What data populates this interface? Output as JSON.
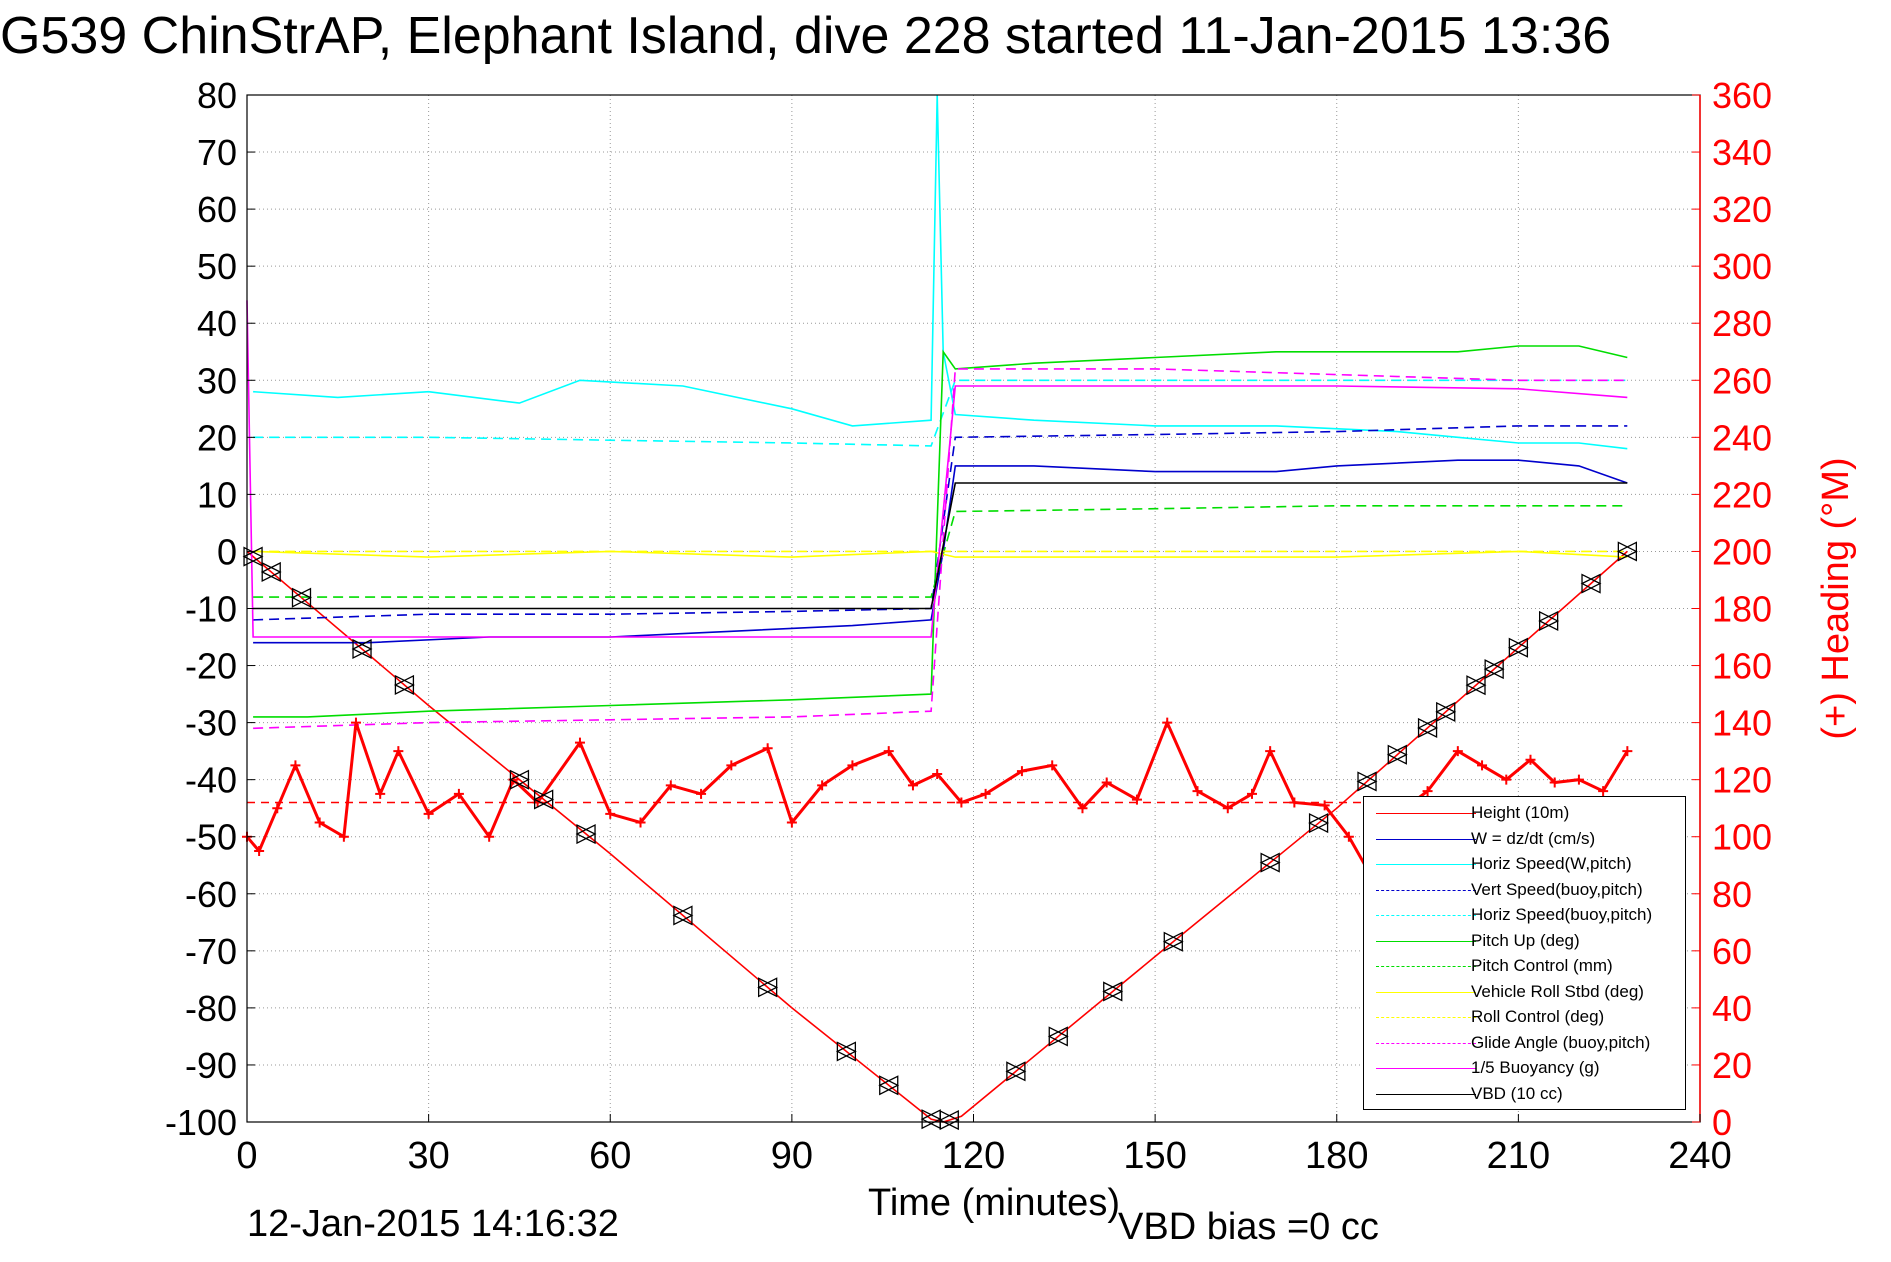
{
  "title": "G539 ChinStrAP, Elephant Island, dive 228 started 11-Jan-2015 13:36",
  "footer_left": "12-Jan-2015 14:16:32",
  "footer_right": "VBD bias =0 cc",
  "colors": {
    "height": "#ff0000",
    "w": "#0000cc",
    "horiz": "#00ffff",
    "pitch": "#00dd00",
    "roll": "#ffff00",
    "glide": "#ff00ff",
    "vbd": "#000000",
    "heading_axis": "#ff0000"
  },
  "chart_data": {
    "type": "line",
    "title": "G539 ChinStrAP, Elephant Island, dive 228 started 11-Jan-2015 13:36",
    "xlabel": "Time (minutes)",
    "ylabel_right": "(+) Heading (°M)",
    "xlim": [
      0,
      240
    ],
    "ylim_left": [
      -100,
      80
    ],
    "ylim_right": [
      0,
      360
    ],
    "x_ticks": [
      "0",
      "30",
      "60",
      "90",
      "120",
      "150",
      "180",
      "210",
      "240"
    ],
    "y_ticks_left": [
      "80",
      "70",
      "60",
      "50",
      "40",
      "30",
      "20",
      "10",
      "0",
      "-10",
      "-20",
      "-30",
      "-40",
      "-50",
      "-60",
      "-70",
      "-80",
      "-90",
      "-100"
    ],
    "y_ticks_right": [
      "360",
      "340",
      "320",
      "300",
      "280",
      "260",
      "240",
      "220",
      "200",
      "180",
      "160",
      "140",
      "120",
      "100",
      "80",
      "60",
      "40",
      "20",
      "0"
    ],
    "grid": true,
    "legend_position": "bottom-right",
    "series": [
      {
        "name": "Height (10m)",
        "style": "solid",
        "color_key": "height",
        "x": [
          0,
          10,
          30,
          60,
          90,
          113,
          115,
          118,
          150,
          180,
          228
        ],
        "y": [
          0,
          -9,
          -27,
          -53,
          -80,
          -99.5,
          -100,
          -99,
          -71,
          -45,
          0
        ]
      },
      {
        "name": "W = dz/dt (cm/s)",
        "style": "solid",
        "color_key": "w",
        "x": [
          1,
          20,
          40,
          60,
          80,
          100,
          113,
          115,
          117,
          130,
          150,
          170,
          180,
          200,
          210,
          220,
          228
        ],
        "y": [
          -16,
          -16,
          -15,
          -15,
          -14,
          -13,
          -12,
          0,
          15,
          15,
          14,
          14,
          15,
          16,
          16,
          15,
          12
        ]
      },
      {
        "name": "Horiz Speed(W,pitch)",
        "style": "solid",
        "color_key": "horiz",
        "x": [
          1,
          15,
          30,
          45,
          55,
          72,
          90,
          100,
          113,
          114,
          115,
          117,
          130,
          150,
          170,
          190,
          200,
          210,
          220,
          228
        ],
        "y": [
          28,
          27,
          28,
          26,
          30,
          29,
          25,
          22,
          23,
          80,
          35,
          24,
          23,
          22,
          22,
          21,
          20,
          19,
          19,
          18
        ]
      },
      {
        "name": "Vert Speed(buoy,pitch)",
        "style": "dashed",
        "color_key": "w",
        "x": [
          1,
          30,
          60,
          90,
          113,
          117,
          150,
          180,
          210,
          228
        ],
        "y": [
          -12,
          -11,
          -11,
          -10.5,
          -10,
          20,
          20.5,
          21,
          22,
          22
        ]
      },
      {
        "name": "Horiz Speed(buoy,pitch)",
        "style": "dashed",
        "color_key": "horiz",
        "x": [
          1,
          30,
          60,
          90,
          113,
          117,
          150,
          180,
          210,
          228
        ],
        "y": [
          20,
          20,
          19.5,
          19,
          18.5,
          30,
          30,
          30,
          30,
          30
        ]
      },
      {
        "name": "Pitch Up (deg)",
        "style": "solid",
        "color_key": "pitch",
        "x": [
          1,
          10,
          30,
          60,
          90,
          113,
          115,
          117,
          130,
          150,
          170,
          185,
          200,
          210,
          220,
          228
        ],
        "y": [
          -29,
          -29,
          -28,
          -27,
          -26,
          -25,
          35,
          32,
          33,
          34,
          35,
          35,
          35,
          36,
          36,
          34
        ]
      },
      {
        "name": "Pitch Control (mm)",
        "style": "dashed",
        "color_key": "pitch",
        "x": [
          1,
          30,
          60,
          90,
          113,
          117,
          150,
          180,
          210,
          228
        ],
        "y": [
          -8,
          -8,
          -8,
          -8,
          -8,
          7,
          7.5,
          8,
          8,
          8
        ]
      },
      {
        "name": "Vehicle Roll Stbd (deg)",
        "style": "solid",
        "color_key": "roll",
        "x": [
          1,
          30,
          60,
          90,
          113,
          117,
          150,
          180,
          210,
          228
        ],
        "y": [
          0,
          -1,
          0,
          -1,
          0,
          -1,
          -1,
          -1,
          0,
          -1
        ]
      },
      {
        "name": "Roll Control (deg)",
        "style": "dashed",
        "color_key": "roll",
        "x": [
          1,
          113,
          117,
          228
        ],
        "y": [
          0,
          0,
          0,
          0
        ]
      },
      {
        "name": "Glide Angle (buoy,pitch)",
        "style": "dashed",
        "color_key": "glide",
        "x": [
          1,
          30,
          60,
          90,
          113,
          117,
          150,
          180,
          210,
          228
        ],
        "y": [
          -31,
          -30,
          -29.5,
          -29,
          -28,
          32,
          32,
          31,
          30,
          30
        ]
      },
      {
        "name": "1/5 Buoyancy (g)",
        "style": "solid",
        "color_key": "glide",
        "x": [
          0,
          1,
          30,
          60,
          90,
          113,
          117,
          150,
          180,
          210,
          228
        ],
        "y": [
          44,
          -15,
          -15,
          -15,
          -15,
          -15,
          29,
          29,
          29,
          28.5,
          27
        ]
      },
      {
        "name": "VBD (10 cc)",
        "style": "solid",
        "color_key": "vbd",
        "x": [
          1,
          30,
          60,
          90,
          113,
          117,
          150,
          180,
          210,
          228
        ],
        "y": [
          -10,
          -10,
          -10,
          -10,
          -10,
          12,
          12,
          12,
          12,
          12
        ]
      }
    ],
    "heading": {
      "name": "(+) Heading (°M)",
      "axis": "right",
      "target_deg": 112,
      "x": [
        0,
        2,
        5,
        8,
        12,
        16,
        18,
        22,
        25,
        30,
        35,
        40,
        44,
        48,
        55,
        60,
        65,
        70,
        75,
        80,
        86,
        90,
        95,
        100,
        106,
        110,
        114,
        118,
        122,
        128,
        133,
        138,
        142,
        147,
        152,
        157,
        162,
        166,
        169,
        173,
        178,
        182,
        186,
        190,
        195,
        200,
        204,
        208,
        212,
        216,
        220,
        224,
        228
      ],
      "y": [
        100,
        95,
        110,
        125,
        105,
        100,
        140,
        115,
        130,
        108,
        115,
        100,
        120,
        112,
        133,
        108,
        105,
        118,
        115,
        125,
        131,
        105,
        118,
        125,
        130,
        118,
        122,
        112,
        115,
        123,
        125,
        110,
        119,
        113,
        140,
        116,
        110,
        115,
        130,
        112,
        111,
        100,
        85,
        108,
        116,
        130,
        125,
        120,
        127,
        119,
        120,
        116,
        130
      ]
    }
  }
}
